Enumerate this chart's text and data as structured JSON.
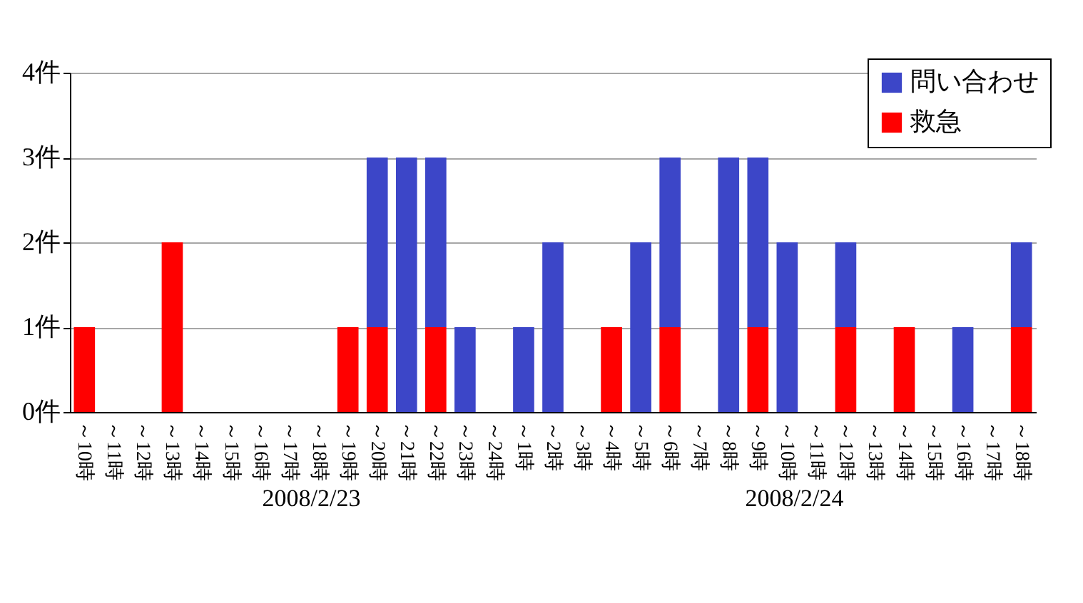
{
  "chart_data": {
    "type": "bar",
    "stacked": true,
    "categories": [
      "～10時",
      "～11時",
      "～12時",
      "～13時",
      "～14時",
      "～15時",
      "～16時",
      "～17時",
      "～18時",
      "～19時",
      "～20時",
      "～21時",
      "～22時",
      "～23時",
      "～24時",
      "～1時",
      "～2時",
      "～3時",
      "～4時",
      "～5時",
      "～6時",
      "～7時",
      "～8時",
      "～9時",
      "～10時",
      "～11時",
      "～12時",
      "～13時",
      "～14時",
      "～15時",
      "～16時",
      "～17時",
      "～18時"
    ],
    "series": [
      {
        "name": "救急",
        "color": "#ff0000",
        "values": [
          1,
          0,
          0,
          2,
          0,
          0,
          0,
          0,
          0,
          1,
          1,
          0,
          1,
          0,
          0,
          0,
          0,
          0,
          1,
          0,
          1,
          0,
          0,
          1,
          0,
          0,
          1,
          0,
          1,
          0,
          0,
          0,
          1
        ]
      },
      {
        "name": "問い合わせ",
        "color": "#3c46c8",
        "values": [
          0,
          0,
          0,
          0,
          0,
          0,
          0,
          0,
          0,
          0,
          2,
          3,
          2,
          1,
          0,
          1,
          2,
          0,
          0,
          2,
          2,
          0,
          3,
          2,
          2,
          0,
          1,
          0,
          0,
          0,
          1,
          0,
          1
        ]
      }
    ],
    "ylim": [
      0,
      4
    ],
    "yticks": [
      {
        "value": 0,
        "label": "0件"
      },
      {
        "value": 1,
        "label": "1件"
      },
      {
        "value": 2,
        "label": "2件"
      },
      {
        "value": 3,
        "label": "3件"
      },
      {
        "value": 4,
        "label": "4件"
      }
    ],
    "grid": "y",
    "legend": "top right",
    "annotations": [
      "2008/2/23",
      "2008/2/24"
    ]
  }
}
